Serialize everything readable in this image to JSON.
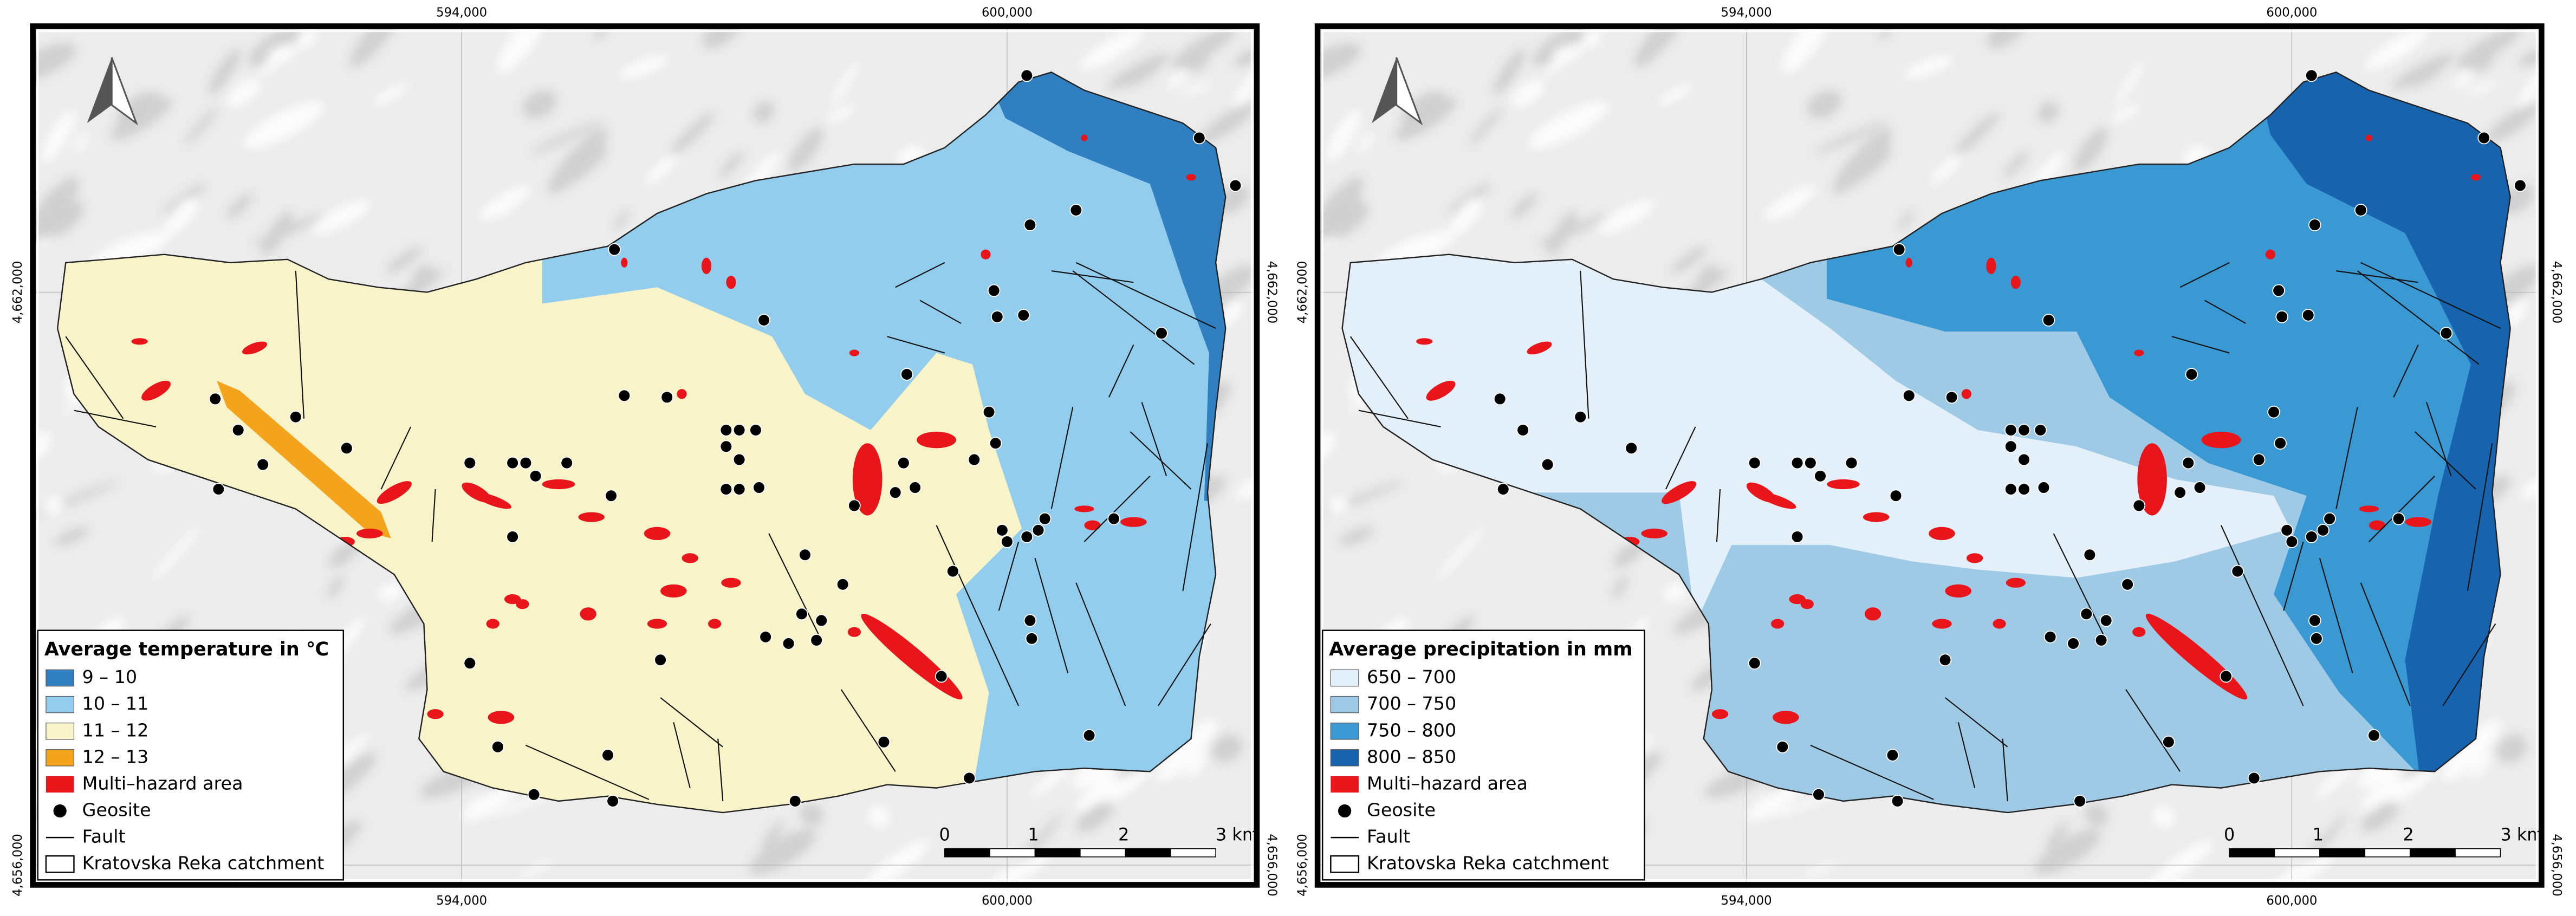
{
  "maps": [
    {
      "legend": {
        "title": "Average temperature in ℃",
        "classes": [
          {
            "label": "9 – 10",
            "color": "#2f7fc1"
          },
          {
            "label": "10 – 11",
            "color": "#92cdee"
          },
          {
            "label": "11 – 12",
            "color": "#f8f3c8"
          },
          {
            "label": "12 – 13",
            "color": "#f4a31c"
          }
        ],
        "multi_hazard": "Multi–hazard area",
        "geosite": "Geosite",
        "fault": "Fault",
        "catchment": "Kratovska Reka catchment"
      },
      "grid_labels": {
        "x": [
          "594,000",
          "600,000"
        ],
        "y": [
          "4,662,000",
          "4,656,000"
        ]
      },
      "scale_bar": [
        "0",
        "1",
        "2",
        "3 km"
      ]
    },
    {
      "legend": {
        "title": "Average precipitation in mm",
        "classes": [
          {
            "label": "650 – 700",
            "color": "#e4f0f9"
          },
          {
            "label": "700 – 750",
            "color": "#9fcae6"
          },
          {
            "label": "750 – 800",
            "color": "#3a98d2"
          },
          {
            "label": "800 – 850",
            "color": "#1763ae"
          }
        ],
        "multi_hazard": "Multi–hazard area",
        "geosite": "Geosite",
        "fault": "Fault",
        "catchment": "Kratovska Reka catchment"
      },
      "grid_labels": {
        "x": [
          "594,000",
          "600,000"
        ],
        "y": [
          "4,662,000",
          "4,656,000"
        ]
      },
      "scale_bar": [
        "0",
        "1",
        "2",
        "3 km"
      ]
    }
  ]
}
